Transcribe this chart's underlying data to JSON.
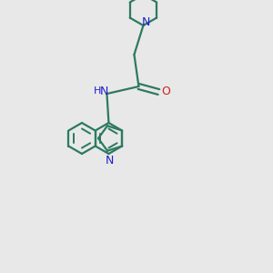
{
  "bg_color": "#e8e8e8",
  "bond_color": "#2d7a5f",
  "N_color": "#2020cc",
  "O_color": "#cc2020",
  "lw": 1.6,
  "figsize": [
    3.0,
    3.0
  ],
  "dpi": 100,
  "xlim": [
    0,
    300
  ],
  "ylim": [
    0,
    300
  ]
}
